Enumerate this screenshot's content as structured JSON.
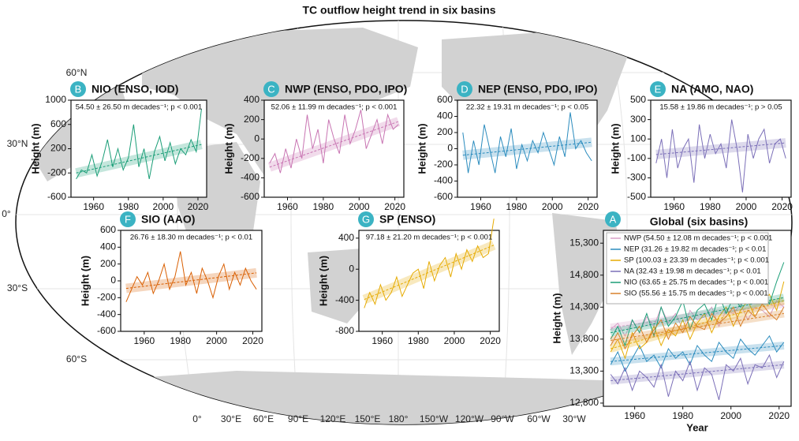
{
  "title": "TC outflow height trend in six basins",
  "map": {
    "lat_labels": [
      "60°N",
      "30°N",
      "0°",
      "30°S",
      "60°S"
    ],
    "lon_labels": [
      "0°",
      "30°E",
      "60°E",
      "90°E",
      "120°E",
      "150°E",
      "180°",
      "150°W",
      "120°W",
      "90°W",
      "60°W",
      "30°W"
    ]
  },
  "chart_data": [
    {
      "type": "line",
      "letter": "B",
      "title": "NIO (ENSO, IOD)",
      "annotation": "54.50 ± 26.50 m decades⁻¹; p < 0.001",
      "ylabel": "Height (m)",
      "x": [
        1950,
        1953,
        1956,
        1959,
        1962,
        1965,
        1968,
        1971,
        1974,
        1977,
        1980,
        1983,
        1986,
        1989,
        1992,
        1995,
        1998,
        2001,
        2004,
        2007,
        2010,
        2013,
        2016,
        2019,
        2022
      ],
      "xlim": [
        1947,
        2025
      ],
      "ylim": [
        -600,
        1000
      ],
      "xticks": [
        1960,
        1980,
        2000,
        2020
      ],
      "yticks": [
        -600,
        -200,
        200,
        600,
        1000
      ],
      "trend_x": [
        1950,
        2022
      ],
      "series": [
        {
          "color": "#1a9e77",
          "values": [
            -300,
            -150,
            -200,
            100,
            -250,
            0,
            350,
            -100,
            200,
            -150,
            50,
            600,
            -100,
            200,
            -300,
            150,
            400,
            0,
            300,
            -50,
            200,
            100,
            350,
            150,
            850
          ],
          "trend": [
            -200,
            270
          ]
        }
      ]
    },
    {
      "type": "line",
      "letter": "C",
      "title": "NWP (ENSO, PDO, IPO)",
      "annotation": "52.06 ± 11.99 m decades⁻¹; p < 0.001",
      "ylabel": "Height (m)",
      "x": [
        1950,
        1953,
        1956,
        1959,
        1962,
        1965,
        1968,
        1971,
        1974,
        1977,
        1980,
        1983,
        1986,
        1989,
        1992,
        1995,
        1998,
        2001,
        2004,
        2007,
        2010,
        2013,
        2016,
        2019,
        2022
      ],
      "xlim": [
        1947,
        2025
      ],
      "ylim": [
        -600,
        400
      ],
      "xticks": [
        1960,
        1980,
        2000,
        2020
      ],
      "yticks": [
        -600,
        -400,
        -200,
        0,
        200,
        400
      ],
      "trend_x": [
        1950,
        2022
      ],
      "series": [
        {
          "color": "#c874b2",
          "values": [
            -250,
            -150,
            -350,
            -100,
            -300,
            0,
            -200,
            250,
            -100,
            100,
            -250,
            200,
            0,
            -150,
            250,
            -50,
            100,
            300,
            -100,
            50,
            200,
            -50,
            250,
            100,
            150
          ],
          "trend": [
            -290,
            180
          ]
        }
      ]
    },
    {
      "type": "line",
      "letter": "D",
      "title": "NEP (ENSO, PDO, IPO)",
      "annotation": "22.32 ± 19.31 m decades⁻¹; p < 0.05",
      "ylabel": "Height (m)",
      "x": [
        1950,
        1953,
        1956,
        1959,
        1962,
        1965,
        1968,
        1971,
        1974,
        1977,
        1980,
        1983,
        1986,
        1989,
        1992,
        1995,
        1998,
        2001,
        2004,
        2007,
        2010,
        2013,
        2016,
        2019,
        2022
      ],
      "xlim": [
        1947,
        2025
      ],
      "ylim": [
        -600,
        600
      ],
      "xticks": [
        1960,
        1980,
        2000,
        2020
      ],
      "yticks": [
        -600,
        -400,
        -200,
        0,
        200,
        400,
        600
      ],
      "trend_x": [
        1950,
        2022
      ],
      "series": [
        {
          "color": "#2b8cbe",
          "values": [
            200,
            -300,
            100,
            -200,
            300,
            0,
            -300,
            150,
            -100,
            250,
            -250,
            50,
            -150,
            100,
            -50,
            200,
            0,
            -200,
            150,
            -100,
            450,
            0,
            100,
            -50,
            -150
          ],
          "trend": [
            -80,
            80
          ]
        }
      ]
    },
    {
      "type": "line",
      "letter": "E",
      "title": "NA (AMO, NAO)",
      "annotation": "15.58 ± 19.86 m decades⁻¹; p > 0.05",
      "ylabel": "Height (m)",
      "x": [
        1950,
        1953,
        1956,
        1959,
        1962,
        1965,
        1968,
        1971,
        1974,
        1977,
        1980,
        1983,
        1986,
        1989,
        1992,
        1995,
        1998,
        2001,
        2004,
        2007,
        2010,
        2013,
        2016,
        2019,
        2022
      ],
      "xlim": [
        1947,
        2025
      ],
      "ylim": [
        -500,
        500
      ],
      "xticks": [
        1960,
        1980,
        2000,
        2020
      ],
      "yticks": [
        -500,
        -300,
        -100,
        100,
        300,
        500
      ],
      "trend_x": [
        1950,
        2022
      ],
      "series": [
        {
          "color": "#7b6fb8",
          "values": [
            -150,
            100,
            -300,
            200,
            -200,
            0,
            100,
            -350,
            250,
            -100,
            150,
            -50,
            50,
            -200,
            300,
            0,
            -450,
            150,
            -100,
            100,
            200,
            -150,
            50,
            100,
            -100
          ],
          "trend": [
            -60,
            60
          ]
        }
      ]
    },
    {
      "type": "line",
      "letter": "F",
      "title": "SIO (AAO)",
      "annotation": "26.76 ± 18.30 m decades⁻¹; p < 0.01",
      "ylabel": "Height (m)",
      "x": [
        1950,
        1953,
        1956,
        1959,
        1962,
        1965,
        1968,
        1971,
        1974,
        1977,
        1980,
        1983,
        1986,
        1989,
        1992,
        1995,
        1998,
        2001,
        2004,
        2007,
        2010,
        2013,
        2016,
        2019,
        2022
      ],
      "xlim": [
        1947,
        2025
      ],
      "ylim": [
        -600,
        600
      ],
      "xticks": [
        1960,
        1980,
        2000,
        2020
      ],
      "yticks": [
        -600,
        -400,
        -200,
        0,
        200,
        400,
        600
      ],
      "trend_x": [
        1950,
        2022
      ],
      "series": [
        {
          "color": "#d95f02",
          "values": [
            -250,
            -100,
            50,
            -50,
            100,
            -150,
            0,
            200,
            -100,
            50,
            350,
            -50,
            100,
            -150,
            150,
            0,
            -200,
            50,
            200,
            -100,
            100,
            -50,
            150,
            0,
            -100
          ],
          "trend": [
            -90,
            95
          ]
        }
      ]
    },
    {
      "type": "line",
      "letter": "G",
      "title": "SP (ENSO)",
      "annotation": "97.18 ± 21.20 m decades⁻¹; p < 0.001",
      "ylabel": "Height (m)",
      "x": [
        1950,
        1953,
        1956,
        1959,
        1962,
        1965,
        1968,
        1971,
        1974,
        1977,
        1980,
        1983,
        1986,
        1989,
        1992,
        1995,
        1998,
        2001,
        2004,
        2007,
        2010,
        2013,
        2016,
        2019,
        2022
      ],
      "xlim": [
        1947,
        2025
      ],
      "ylim": [
        -800,
        500
      ],
      "xticks": [
        1960,
        1980,
        2000,
        2020
      ],
      "yticks": [
        -800,
        -400,
        0,
        400
      ],
      "trend_x": [
        1950,
        2022
      ],
      "series": [
        {
          "color": "#e6ab02",
          "values": [
            -500,
            -300,
            -450,
            -200,
            -400,
            -300,
            -100,
            -350,
            -200,
            -50,
            0,
            -250,
            100,
            -150,
            50,
            150,
            -100,
            200,
            0,
            250,
            100,
            300,
            150,
            200,
            650
          ],
          "trend": [
            -390,
            310
          ]
        }
      ]
    },
    {
      "type": "line",
      "letter": "A",
      "title": "Global (six basins)",
      "ylabel": "Height (m)",
      "xlabel": "Year",
      "x": [
        1950,
        1953,
        1956,
        1959,
        1962,
        1965,
        1968,
        1971,
        1974,
        1977,
        1980,
        1983,
        1986,
        1989,
        1992,
        1995,
        1998,
        2001,
        2004,
        2007,
        2010,
        2013,
        2016,
        2019,
        2022
      ],
      "xlim": [
        1947,
        2025
      ],
      "ylim": [
        12750,
        15500
      ],
      "xticks": [
        1960,
        1980,
        2000,
        2020
      ],
      "yticks": [
        {
          "value": 12800,
          "label": "12,800"
        },
        {
          "value": 13300,
          "label": "13,300"
        },
        {
          "value": 13800,
          "label": "13,800"
        },
        {
          "value": 14300,
          "label": "14,300"
        },
        {
          "value": 14800,
          "label": "14,800"
        },
        {
          "value": 15300,
          "label": "15,300"
        }
      ],
      "trend_x": [
        1950,
        2022
      ],
      "series": [
        {
          "name": "NWP (54.50 ± 12.08 m decades⁻¹; p < 0.001",
          "color": "#d9a0c8",
          "values": [
            13950,
            14050,
            13850,
            14100,
            13900,
            14150,
            14000,
            14300,
            14050,
            14200,
            13950,
            14250,
            14100,
            14150,
            14300,
            14000,
            14250,
            14200,
            14350,
            14100,
            14300,
            14250,
            14150,
            14400,
            14300
          ],
          "trend": [
            13980,
            14350
          ]
        },
        {
          "name": "NEP (31.26 ± 19.82 m decades⁻¹; p < 0.01",
          "color": "#2b8cbe",
          "values": [
            13400,
            13600,
            13300,
            13500,
            13700,
            13450,
            13550,
            13350,
            13650,
            13500,
            13600,
            13400,
            13700,
            13550,
            13450,
            13750,
            13600,
            13500,
            13800,
            13650,
            13550,
            13700,
            13850,
            13600,
            13750
          ],
          "trend": [
            13450,
            13700
          ]
        },
        {
          "name": "SP (100.03 ± 23.39 m decades⁻¹; p < 0.001",
          "color": "#e6ab02",
          "values": [
            13600,
            13800,
            13500,
            13900,
            13650,
            13750,
            14000,
            13700,
            13950,
            13850,
            14100,
            13800,
            14050,
            14200,
            13900,
            14150,
            14300,
            14000,
            14250,
            14400,
            14150,
            14350,
            14500,
            14250,
            14700
          ],
          "trend": [
            13650,
            14400
          ]
        },
        {
          "name": "NA (32.43 ± 19.98 m decades⁻¹; p < 0.01",
          "color": "#7b6fb8",
          "values": [
            13250,
            13100,
            13350,
            13000,
            13300,
            13200,
            13050,
            13400,
            12900,
            13300,
            13150,
            13450,
            13000,
            13350,
            13250,
            12850,
            13400,
            13300,
            13500,
            13100,
            13400,
            13350,
            13550,
            13200,
            13450
          ],
          "trend": [
            13150,
            13400
          ]
        },
        {
          "name": "NIO (63.65 ± 25.75 m decades⁻¹; p < 0.001",
          "color": "#1a9e77",
          "values": [
            13800,
            14000,
            13700,
            14100,
            13900,
            14200,
            13850,
            14300,
            14000,
            14150,
            14400,
            13950,
            14250,
            14350,
            14100,
            14500,
            14200,
            14450,
            14300,
            14600,
            14400,
            14550,
            14350,
            14700,
            15000
          ],
          "trend": [
            13900,
            14450
          ]
        },
        {
          "name": "SIO (55.56 ± 15.75 m decades⁻¹; p < 0.001",
          "color": "#d9812a",
          "values": [
            13700,
            13900,
            13650,
            13850,
            14000,
            13750,
            13950,
            14100,
            13800,
            14050,
            13900,
            14150,
            14000,
            13950,
            14200,
            14050,
            14150,
            14300,
            14000,
            14250,
            14150,
            14350,
            14200,
            14100,
            14300
          ],
          "trend": [
            13780,
            14200
          ]
        }
      ]
    }
  ]
}
